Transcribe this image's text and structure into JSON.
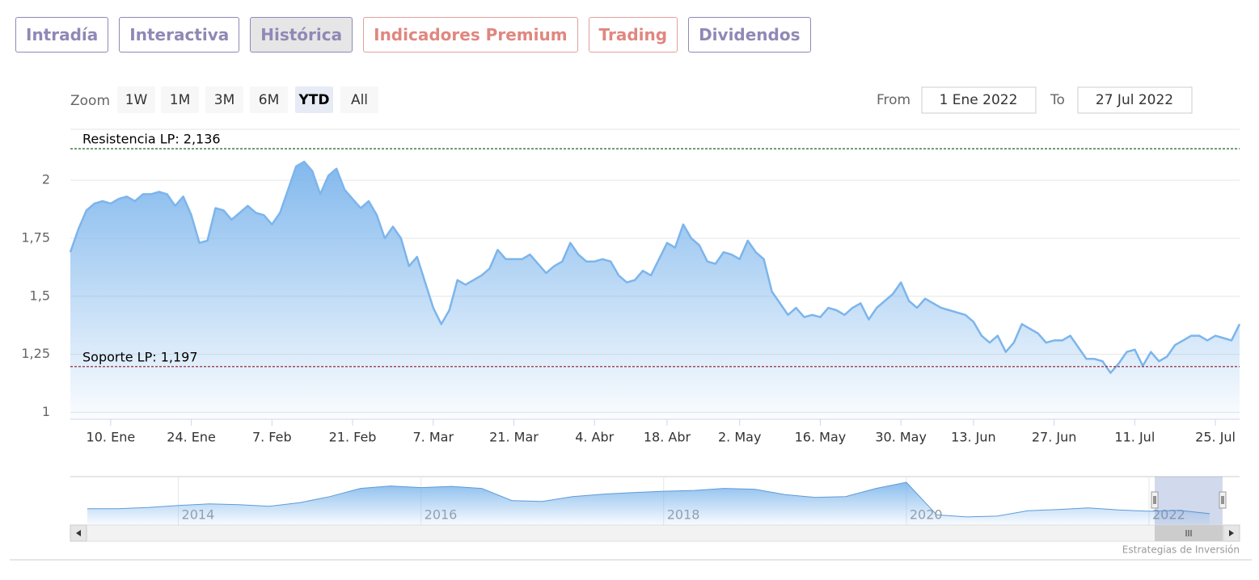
{
  "tabs": [
    "Intradía",
    "Interactiva",
    "Histórica",
    "Indicadores Premium",
    "Trading",
    "Dividendos"
  ],
  "active_tab": 2,
  "zoom": {
    "label": "Zoom",
    "buttons": [
      "1W",
      "1M",
      "3M",
      "6M",
      "YTD",
      "All"
    ],
    "selected": 4
  },
  "range": {
    "from_label": "From",
    "from": "1 Ene 2022",
    "to_label": "To",
    "to": "27 Jul 2022"
  },
  "credits": "Estrategias de Inversión",
  "chart_data": {
    "type": "area",
    "color": "#7cb5ec",
    "grid": true,
    "categories": [
      null,
      null,
      null,
      null,
      null,
      "10. Ene",
      null,
      null,
      null,
      null,
      null,
      null,
      null,
      null,
      null,
      "24. Ene",
      null,
      null,
      null,
      null,
      null,
      null,
      null,
      null,
      null,
      "7. Feb",
      null,
      null,
      null,
      null,
      null,
      null,
      null,
      null,
      null,
      "21. Feb",
      null,
      null,
      null,
      null,
      null,
      null,
      null,
      null,
      null,
      "7. Mar",
      null,
      null,
      null,
      null,
      null,
      null,
      null,
      null,
      null,
      "21. Mar",
      null,
      null,
      null,
      null,
      null,
      null,
      null,
      null,
      null,
      "4. Abr",
      null,
      null,
      null,
      null,
      null,
      null,
      null,
      null,
      "18. Abr",
      null,
      null,
      null,
      null,
      null,
      null,
      null,
      null,
      "2. May",
      null,
      null,
      null,
      null,
      null,
      null,
      null,
      null,
      null,
      "16. May",
      null,
      null,
      null,
      null,
      null,
      null,
      null,
      null,
      null,
      "30. May",
      null,
      null,
      null,
      null,
      null,
      null,
      null,
      null,
      "13. Jun",
      null,
      null,
      null,
      null,
      null,
      null,
      null,
      null,
      null,
      "27. Jun",
      null,
      null,
      null,
      null,
      null,
      null,
      null,
      null,
      null,
      "11. Jul",
      null,
      null,
      null,
      null,
      null,
      null,
      null,
      null,
      null,
      "25. Jul",
      null,
      null,
      null
    ],
    "values": [
      1.69,
      1.79,
      1.87,
      1.9,
      1.91,
      1.9,
      1.92,
      1.93,
      1.91,
      1.94,
      1.94,
      1.95,
      1.94,
      1.89,
      1.93,
      1.85,
      1.73,
      1.74,
      1.88,
      1.87,
      1.83,
      1.86,
      1.89,
      1.86,
      1.85,
      1.81,
      1.86,
      1.96,
      2.06,
      2.08,
      2.04,
      1.94,
      2.02,
      2.05,
      1.96,
      1.92,
      1.88,
      1.91,
      1.85,
      1.75,
      1.8,
      1.75,
      1.63,
      1.67,
      1.56,
      1.45,
      1.38,
      1.44,
      1.57,
      1.55,
      1.57,
      1.59,
      1.62,
      1.7,
      1.66,
      1.66,
      1.66,
      1.68,
      1.64,
      1.6,
      1.63,
      1.65,
      1.73,
      1.68,
      1.65,
      1.65,
      1.66,
      1.65,
      1.59,
      1.56,
      1.57,
      1.61,
      1.59,
      1.66,
      1.73,
      1.71,
      1.81,
      1.75,
      1.72,
      1.65,
      1.64,
      1.69,
      1.68,
      1.66,
      1.74,
      1.69,
      1.66,
      1.52,
      1.47,
      1.42,
      1.45,
      1.41,
      1.42,
      1.41,
      1.45,
      1.44,
      1.42,
      1.45,
      1.47,
      1.4,
      1.45,
      1.48,
      1.51,
      1.56,
      1.48,
      1.45,
      1.49,
      1.47,
      1.45,
      1.44,
      1.43,
      1.42,
      1.39,
      1.33,
      1.3,
      1.33,
      1.26,
      1.3,
      1.38,
      1.36,
      1.34,
      1.3,
      1.31,
      1.31,
      1.33,
      1.28,
      1.23,
      1.23,
      1.22,
      1.17,
      1.21,
      1.26,
      1.27,
      1.2,
      1.26,
      1.22,
      1.24,
      1.29,
      1.31,
      1.33,
      1.33,
      1.31,
      1.33,
      1.32,
      1.31,
      1.38
    ],
    "ylim": [
      0.97,
      2.22
    ],
    "yticks": [
      1,
      {
        "value": 1.25,
        "label": "1,25"
      },
      {
        "value": 1.5,
        "label": "1,5"
      },
      {
        "value": 1.75,
        "label": "1,75"
      },
      2
    ],
    "lines": [
      {
        "label": "Resistencia LP: 2,136",
        "value": 2.136,
        "color": "#1f5f1f"
      },
      {
        "label": "Soporte LP: 1,197",
        "value": 1.197,
        "color": "#8b1a2b"
      }
    ],
    "navigator": {
      "categories": [
        null,
        null,
        null,
        "2014",
        null,
        null,
        null,
        null,
        null,
        null,
        null,
        "2016",
        null,
        null,
        null,
        null,
        null,
        null,
        null,
        "2018",
        null,
        null,
        null,
        null,
        null,
        null,
        null,
        "2020",
        null,
        null,
        null,
        null,
        null,
        null,
        null,
        "2022",
        null,
        null
      ],
      "values": [
        1.0,
        1.0,
        1.03,
        1.08,
        1.12,
        1.1,
        1.06,
        1.15,
        1.3,
        1.5,
        1.56,
        1.52,
        1.55,
        1.5,
        1.2,
        1.18,
        1.3,
        1.36,
        1.4,
        1.43,
        1.45,
        1.5,
        1.48,
        1.35,
        1.28,
        1.3,
        1.5,
        1.65,
        0.85,
        0.8,
        0.82,
        0.95,
        0.98,
        1.02,
        0.97,
        0.94,
        0.96,
        0.88
      ],
      "ylim": [
        0.6,
        1.75
      ]
    }
  }
}
